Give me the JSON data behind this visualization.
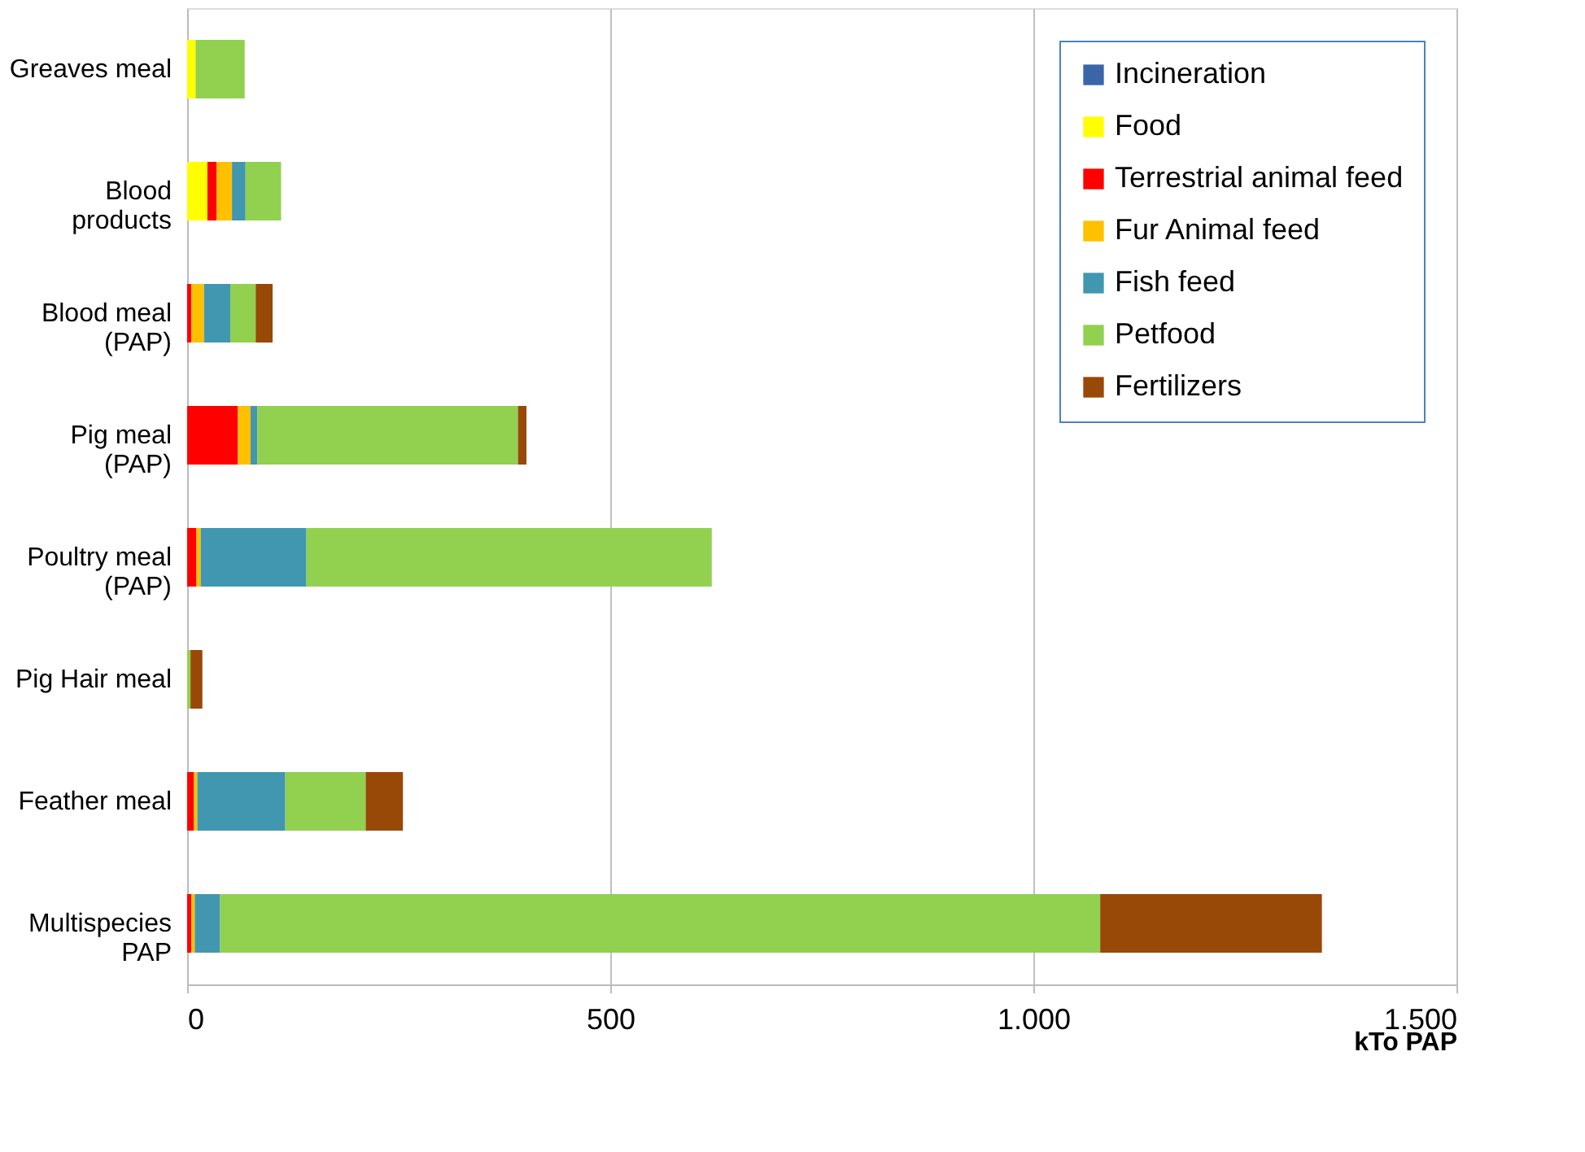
{
  "chart_data": {
    "type": "bar",
    "orientation": "horizontal",
    "stacked": true,
    "xlabel": "kTo PAP",
    "categories": [
      "Greaves meal",
      "Blood\nproducts",
      "Blood meal\n(PAP)",
      "Pig meal\n(PAP)",
      "Poultry meal\n(PAP)",
      "Pig Hair meal",
      "Feather meal",
      "Multispecies\nPAP"
    ],
    "series": [
      {
        "name": "Incineration",
        "color": "#3a66a8",
        "values": [
          0,
          0,
          0,
          0,
          0,
          0,
          0,
          0
        ]
      },
      {
        "name": "Food",
        "color": "#ffff00",
        "values": [
          10,
          24,
          0,
          0,
          0,
          0,
          0,
          0
        ]
      },
      {
        "name": "Terrestrial animal feed",
        "color": "#ff0000",
        "values": [
          0,
          11,
          5,
          60,
          11,
          0,
          8,
          5
        ]
      },
      {
        "name": "Fur Animal feed",
        "color": "#ffc000",
        "values": [
          0,
          18,
          15,
          15,
          5,
          0,
          4,
          4
        ]
      },
      {
        "name": "Fish feed",
        "color": "#4197b0",
        "values": [
          0,
          16,
          31,
          8,
          125,
          0,
          104,
          30
        ]
      },
      {
        "name": "Petfood",
        "color": "#92d050",
        "values": [
          58,
          42,
          30,
          308,
          479,
          4,
          95,
          1040
        ]
      },
      {
        "name": "Fertilizers",
        "color": "#984807",
        "values": [
          0,
          0,
          20,
          10,
          0,
          14,
          44,
          262
        ]
      }
    ],
    "xlim": [
      0,
      1500
    ],
    "xticks": [
      0,
      500,
      {
        "value": 1000,
        "label": "1.000"
      },
      {
        "value": 1500,
        "label": "1.500"
      }
    ],
    "grid": "x",
    "legend": "top right"
  }
}
